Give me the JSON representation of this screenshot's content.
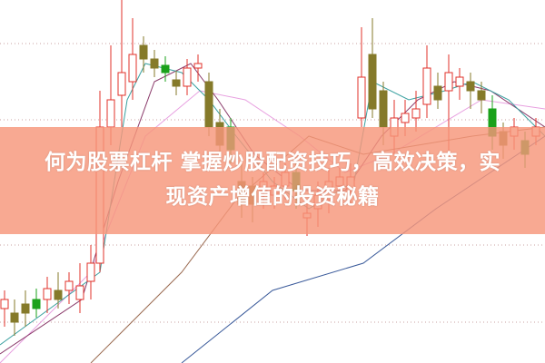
{
  "title": {
    "line1": "何为股票杠杆 掌握炒股配资技巧，高效决策，实",
    "line2": "现资产增值的投资秘籍"
  },
  "colors": {
    "up": "#e0302a",
    "down_green": "#1aa11a",
    "down_olive": "#857a2a",
    "banner": "#f6967a",
    "grid": "#c9a0a0"
  }
}
